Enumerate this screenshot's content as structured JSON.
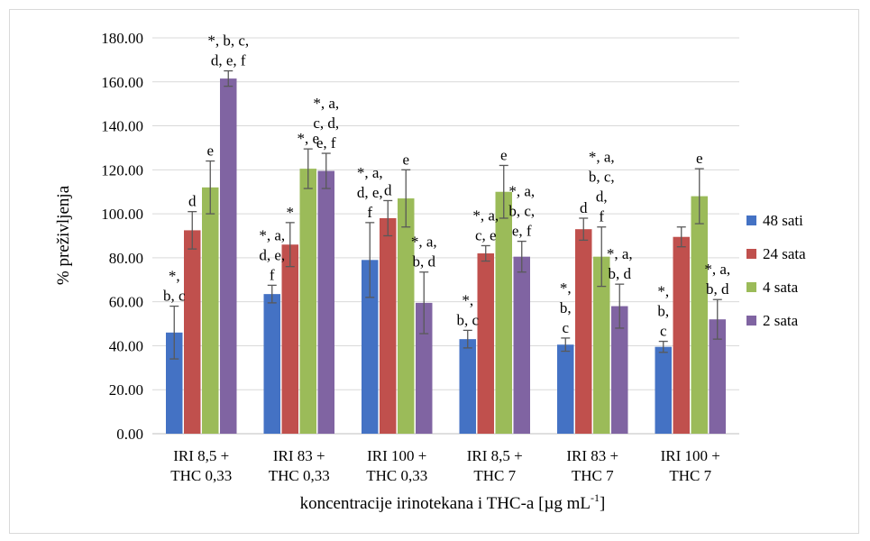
{
  "chart_data": {
    "type": "bar",
    "ylabel": "% preživljenja",
    "xlabel": "koncentracije irinotekana i THC-a [µg mL",
    "xlabel_sup": "-1",
    "xlabel_close": "]",
    "ylim": [
      0,
      180
    ],
    "y_ticks": [
      "0.00",
      "20.00",
      "40.00",
      "60.00",
      "80.00",
      "100.00",
      "120.00",
      "140.00",
      "160.00",
      "180.00"
    ],
    "grid": true,
    "legend_position": "right",
    "categories": [
      [
        "IRI 8,5 +",
        "THC 0,33"
      ],
      [
        "IRI 83 +",
        "THC 0,33"
      ],
      [
        "IRI 100 +",
        "THC 0,33"
      ],
      [
        "IRI 8,5 +",
        "THC 7"
      ],
      [
        "IRI 83 +",
        "THC 7"
      ],
      [
        "IRI 100 +",
        "THC 7"
      ]
    ],
    "series": [
      {
        "name": "48 sati",
        "color": "#4472c4",
        "values": [
          46,
          63.5,
          79,
          43,
          40.5,
          39.5
        ],
        "errors": [
          12,
          4,
          17,
          4,
          3,
          2.5
        ],
        "labels": [
          [
            "*,",
            "b, c"
          ],
          [
            "*, a,",
            "d, e,",
            "f"
          ],
          [
            "*, a,",
            "d, e,",
            "f"
          ],
          [
            "*,",
            "b, c"
          ],
          [
            "*,",
            "b,",
            "c"
          ],
          [
            "*,",
            "b,",
            "c"
          ]
        ]
      },
      {
        "name": "24 sata",
        "color": "#c0504d",
        "values": [
          92.5,
          86,
          98,
          82,
          93,
          89.5
        ],
        "errors": [
          8.5,
          10,
          8,
          3.5,
          5,
          4.5
        ],
        "labels": [
          [
            "d"
          ],
          [
            "*"
          ],
          [
            "d"
          ],
          [
            "*, a,",
            "c, e"
          ],
          [
            "d"
          ],
          [
            ""
          ]
        ]
      },
      {
        "name": "4 sata",
        "color": "#9bbb59",
        "values": [
          112,
          120.5,
          107,
          110,
          80.5,
          108
        ],
        "errors": [
          12,
          9,
          13,
          12,
          13.5,
          12.5
        ],
        "labels": [
          [
            "e"
          ],
          [
            "*, e"
          ],
          [
            "e"
          ],
          [
            "e"
          ],
          [
            "*, a,",
            "b, c,",
            "d,",
            "f"
          ],
          [
            "e"
          ]
        ]
      },
      {
        "name": "2 sata",
        "color": "#8064a2",
        "values": [
          161.5,
          119.5,
          59.5,
          80.5,
          58,
          52
        ],
        "errors": [
          3.5,
          8,
          14,
          7,
          10,
          9
        ],
        "labels": [
          [
            "*, b, c,",
            "d, e, f"
          ],
          [
            "*, a,",
            "c, d,",
            "e, f"
          ],
          [
            "*, a,",
            "b, d"
          ],
          [
            "*, a,",
            "b, c,",
            "e, f"
          ],
          [
            "*, a,",
            "b, d"
          ],
          [
            "*, a,",
            "b, d"
          ]
        ]
      }
    ]
  }
}
